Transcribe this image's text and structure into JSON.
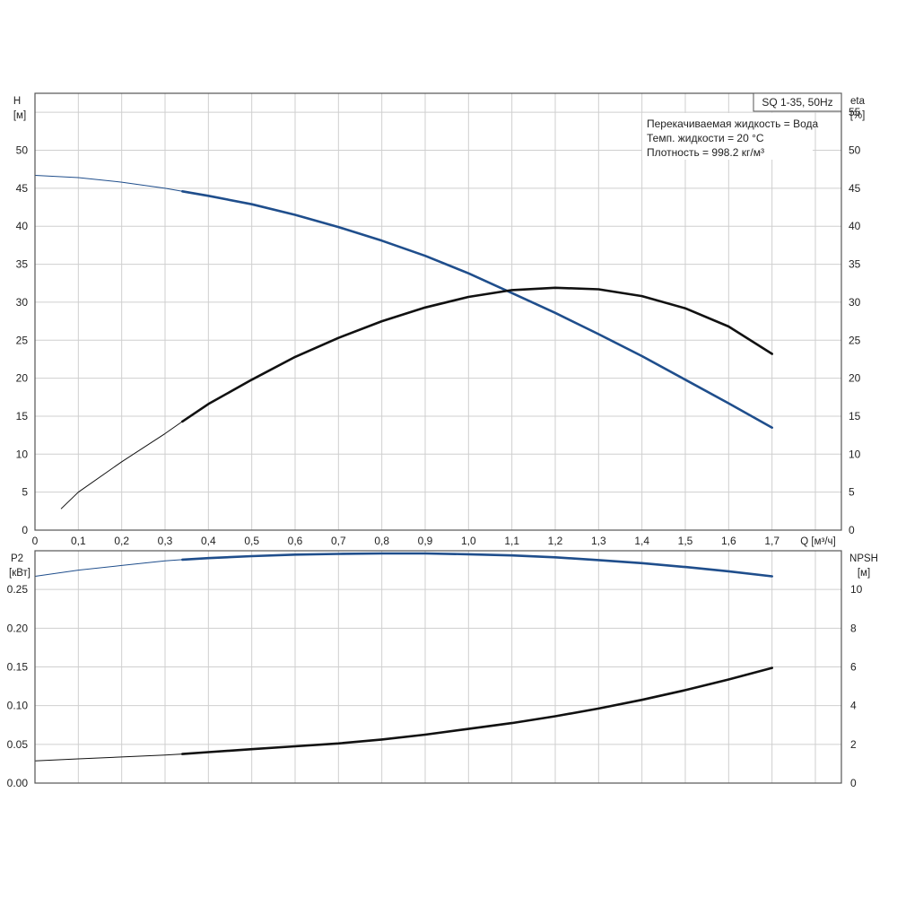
{
  "chart_data": [
    {
      "type": "line",
      "panel": "top",
      "ylabel_left": "H",
      "ylabel_left_unit": "[м]",
      "ylabel_right": "eta",
      "ylabel_right_unit": "[%]",
      "xlabel": "Q [м³/ч]",
      "title_box": "SQ 1-35, 50Hz",
      "annotations": [
        "Перекачиваемая жидкость = Вода",
        "Темп. жидкости = 20 °C",
        "Плотность = 998.2 кг/м³"
      ],
      "xlim": [
        0,
        1.86
      ],
      "ylim_left": [
        0,
        57.5
      ],
      "ylim_right": [
        0,
        57.5
      ],
      "x_ticks": [
        "0",
        "0,1",
        "0,2",
        "0,3",
        "0,4",
        "0,5",
        "0,6",
        "0,7",
        "0,8",
        "0,9",
        "1,0",
        "1,1",
        "1,2",
        "1,3",
        "1,4",
        "1,5",
        "1,6",
        "1,7"
      ],
      "y_left_ticks": [
        "0",
        "5",
        "10",
        "15",
        "20",
        "25",
        "30",
        "35",
        "40",
        "45",
        "50"
      ],
      "y_right_ticks": [
        "0",
        "5",
        "10",
        "15",
        "20",
        "25",
        "30",
        "35",
        "40",
        "45",
        "50",
        "55"
      ],
      "grid": true,
      "series": [
        {
          "id": "head",
          "axis": "left",
          "color": "#1f4e8c",
          "x": [
            0,
            0.1,
            0.2,
            0.3,
            0.34,
            0.4,
            0.5,
            0.6,
            0.7,
            0.8,
            0.9,
            1.0,
            1.1,
            1.2,
            1.3,
            1.4,
            1.5,
            1.6,
            1.7
          ],
          "y": [
            46.7,
            46.4,
            45.8,
            45.0,
            44.6,
            44.0,
            42.9,
            41.5,
            39.9,
            38.1,
            36.1,
            33.8,
            31.2,
            28.6,
            25.8,
            22.9,
            19.8,
            16.7,
            13.5
          ]
        },
        {
          "id": "efficiency",
          "axis": "right",
          "color": "#111111",
          "x": [
            0.06,
            0.1,
            0.2,
            0.3,
            0.34,
            0.4,
            0.5,
            0.6,
            0.7,
            0.8,
            0.9,
            1.0,
            1.1,
            1.2,
            1.3,
            1.4,
            1.5,
            1.6,
            1.7
          ],
          "y": [
            2.8,
            5.0,
            9.0,
            12.7,
            14.3,
            16.6,
            19.8,
            22.8,
            25.3,
            27.5,
            29.3,
            30.7,
            31.6,
            31.9,
            31.7,
            30.8,
            29.2,
            26.8,
            23.2
          ]
        }
      ]
    },
    {
      "type": "line",
      "panel": "bottom",
      "ylabel_left": "P2",
      "ylabel_left_unit": "[кВт]",
      "ylabel_right": "NPSH",
      "ylabel_right_unit": "[м]",
      "xlim": [
        0,
        1.86
      ],
      "ylim_left": [
        0,
        0.3
      ],
      "ylim_right": [
        0,
        12
      ],
      "y_left_ticks": [
        "0.00",
        "0.05",
        "0.10",
        "0.15",
        "0.20",
        "0.25"
      ],
      "y_right_ticks": [
        "0",
        "2",
        "4",
        "6",
        "8",
        "10"
      ],
      "grid": true,
      "series": [
        {
          "id": "power",
          "axis": "left",
          "color": "#1f4e8c",
          "x": [
            0,
            0.1,
            0.2,
            0.3,
            0.34,
            0.4,
            0.5,
            0.6,
            0.7,
            0.8,
            0.9,
            1.0,
            1.1,
            1.2,
            1.3,
            1.4,
            1.5,
            1.6,
            1.7
          ],
          "y": [
            0.267,
            0.275,
            0.281,
            0.287,
            0.2885,
            0.2905,
            0.293,
            0.295,
            0.296,
            0.2965,
            0.2965,
            0.2955,
            0.294,
            0.2915,
            0.288,
            0.284,
            0.279,
            0.2735,
            0.267
          ]
        },
        {
          "id": "npsh",
          "axis": "right",
          "color": "#111111",
          "x": [
            0,
            0.1,
            0.2,
            0.3,
            0.34,
            0.4,
            0.5,
            0.6,
            0.7,
            0.8,
            0.9,
            1.0,
            1.1,
            1.2,
            1.3,
            1.4,
            1.5,
            1.6,
            1.7
          ],
          "y": [
            1.15,
            1.25,
            1.35,
            1.45,
            1.5,
            1.6,
            1.75,
            1.9,
            2.05,
            2.25,
            2.5,
            2.8,
            3.1,
            3.45,
            3.85,
            4.3,
            4.8,
            5.35,
            5.95
          ]
        }
      ]
    }
  ]
}
